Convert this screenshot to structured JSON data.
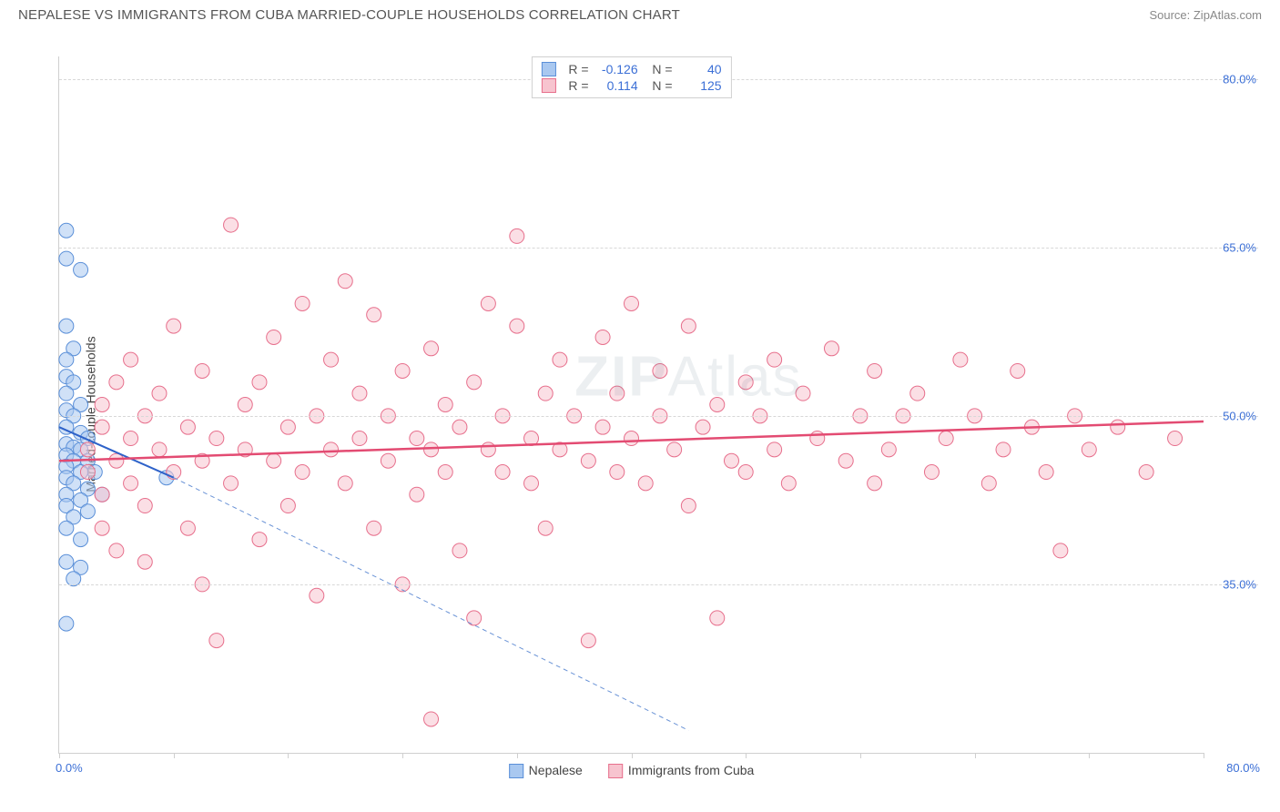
{
  "header": {
    "title": "NEPALESE VS IMMIGRANTS FROM CUBA MARRIED-COUPLE HOUSEHOLDS CORRELATION CHART",
    "source": "Source: ZipAtlas.com"
  },
  "chart": {
    "type": "scatter",
    "ylabel": "Married-couple Households",
    "watermark": "ZIPAtlas",
    "background_color": "#ffffff",
    "grid_color": "#d8d8d8",
    "axis_color": "#cfcfcf",
    "tick_label_color": "#3b6fd6",
    "xlim": [
      0,
      80
    ],
    "ylim": [
      20,
      82
    ],
    "yticks": [
      {
        "v": 35.0,
        "label": "35.0%"
      },
      {
        "v": 50.0,
        "label": "50.0%"
      },
      {
        "v": 65.0,
        "label": "65.0%"
      },
      {
        "v": 80.0,
        "label": "80.0%"
      }
    ],
    "xticks_minor": [
      0,
      8,
      16,
      24,
      32,
      40,
      48,
      56,
      64,
      72,
      80
    ],
    "x_start_label": "0.0%",
    "x_end_label": "80.0%",
    "legend_stats": [
      {
        "swatch_fill": "#a9c8f0",
        "swatch_stroke": "#5a8fd8",
        "r": "-0.126",
        "n": "40"
      },
      {
        "swatch_fill": "#f7c4cf",
        "swatch_stroke": "#e76f8c",
        "r": "0.114",
        "n": "125"
      }
    ],
    "bottom_legend": [
      {
        "swatch_fill": "#a9c8f0",
        "swatch_stroke": "#5a8fd8",
        "label": "Nepalese"
      },
      {
        "swatch_fill": "#f7c4cf",
        "swatch_stroke": "#e76f8c",
        "label": "Immigrants from Cuba"
      }
    ],
    "marker_radius": 8,
    "marker_opacity": 0.55,
    "series": [
      {
        "name": "nepalese",
        "color_fill": "#a9c8f0",
        "color_stroke": "#5a8fd8",
        "trend": {
          "x1": 0,
          "y1": 49.0,
          "x2": 8,
          "y2": 44.5,
          "color": "#2e62c9",
          "width": 2,
          "dash": "none"
        },
        "trend_ext": {
          "x1": 8,
          "y1": 44.5,
          "x2": 44,
          "y2": 22.0,
          "color": "#6a93d6",
          "width": 1,
          "dash": "5,4"
        },
        "points": [
          [
            0.5,
            66.5
          ],
          [
            0.5,
            64.0
          ],
          [
            1.5,
            63.0
          ],
          [
            0.5,
            58.0
          ],
          [
            1.0,
            56.0
          ],
          [
            0.5,
            55.0
          ],
          [
            0.5,
            53.5
          ],
          [
            1.0,
            53.0
          ],
          [
            0.5,
            52.0
          ],
          [
            1.5,
            51.0
          ],
          [
            0.5,
            50.5
          ],
          [
            1.0,
            50.0
          ],
          [
            0.5,
            49.0
          ],
          [
            1.5,
            48.5
          ],
          [
            2.0,
            48.0
          ],
          [
            0.5,
            47.5
          ],
          [
            1.0,
            47.2
          ],
          [
            1.5,
            47.0
          ],
          [
            0.5,
            46.5
          ],
          [
            2.0,
            46.0
          ],
          [
            1.0,
            46.0
          ],
          [
            0.5,
            45.5
          ],
          [
            1.5,
            45.0
          ],
          [
            2.5,
            45.0
          ],
          [
            0.5,
            44.5
          ],
          [
            1.0,
            44.0
          ],
          [
            2.0,
            43.5
          ],
          [
            0.5,
            43.0
          ],
          [
            3.0,
            43.0
          ],
          [
            1.5,
            42.5
          ],
          [
            0.5,
            42.0
          ],
          [
            2.0,
            41.5
          ],
          [
            1.0,
            41.0
          ],
          [
            0.5,
            40.0
          ],
          [
            1.5,
            39.0
          ],
          [
            7.5,
            44.5
          ],
          [
            0.5,
            37.0
          ],
          [
            1.5,
            36.5
          ],
          [
            1.0,
            35.5
          ],
          [
            0.5,
            31.5
          ]
        ]
      },
      {
        "name": "cuba",
        "color_fill": "#f7c4cf",
        "color_stroke": "#e76f8c",
        "trend": {
          "x1": 0,
          "y1": 46.0,
          "x2": 80,
          "y2": 49.5,
          "color": "#e34b72",
          "width": 2.5,
          "dash": "none"
        },
        "points": [
          [
            2,
            47
          ],
          [
            2,
            45
          ],
          [
            3,
            49
          ],
          [
            3,
            43
          ],
          [
            3,
            51
          ],
          [
            3,
            40
          ],
          [
            4,
            46
          ],
          [
            4,
            53
          ],
          [
            4,
            38
          ],
          [
            5,
            48
          ],
          [
            5,
            44
          ],
          [
            5,
            55
          ],
          [
            6,
            50
          ],
          [
            6,
            42
          ],
          [
            6,
            37
          ],
          [
            7,
            47
          ],
          [
            7,
            52
          ],
          [
            8,
            45
          ],
          [
            8,
            58
          ],
          [
            9,
            49
          ],
          [
            9,
            40
          ],
          [
            10,
            46
          ],
          [
            10,
            54
          ],
          [
            10,
            35
          ],
          [
            11,
            48
          ],
          [
            11,
            30
          ],
          [
            12,
            67
          ],
          [
            12,
            44
          ],
          [
            13,
            51
          ],
          [
            13,
            47
          ],
          [
            14,
            53
          ],
          [
            14,
            39
          ],
          [
            15,
            46
          ],
          [
            15,
            57
          ],
          [
            16,
            49
          ],
          [
            16,
            42
          ],
          [
            17,
            60
          ],
          [
            17,
            45
          ],
          [
            18,
            50
          ],
          [
            18,
            34
          ],
          [
            19,
            55
          ],
          [
            19,
            47
          ],
          [
            20,
            62
          ],
          [
            20,
            44
          ],
          [
            21,
            48
          ],
          [
            21,
            52
          ],
          [
            22,
            59
          ],
          [
            22,
            40
          ],
          [
            23,
            46
          ],
          [
            23,
            50
          ],
          [
            24,
            54
          ],
          [
            24,
            35
          ],
          [
            25,
            48
          ],
          [
            25,
            43
          ],
          [
            26,
            47
          ],
          [
            26,
            56
          ],
          [
            27,
            51
          ],
          [
            27,
            45
          ],
          [
            28,
            38
          ],
          [
            28,
            49
          ],
          [
            29,
            53
          ],
          [
            29,
            32
          ],
          [
            30,
            47
          ],
          [
            30,
            60
          ],
          [
            31,
            45
          ],
          [
            31,
            50
          ],
          [
            32,
            58
          ],
          [
            32,
            66
          ],
          [
            33,
            48
          ],
          [
            33,
            44
          ],
          [
            34,
            52
          ],
          [
            34,
            40
          ],
          [
            35,
            47
          ],
          [
            35,
            55
          ],
          [
            36,
            50
          ],
          [
            37,
            46
          ],
          [
            37,
            30
          ],
          [
            38,
            49
          ],
          [
            38,
            57
          ],
          [
            39,
            45
          ],
          [
            39,
            52
          ],
          [
            40,
            48
          ],
          [
            40,
            60
          ],
          [
            41,
            44
          ],
          [
            42,
            50
          ],
          [
            42,
            54
          ],
          [
            43,
            47
          ],
          [
            44,
            58
          ],
          [
            44,
            42
          ],
          [
            45,
            49
          ],
          [
            46,
            51
          ],
          [
            46,
            32
          ],
          [
            47,
            46
          ],
          [
            48,
            53
          ],
          [
            48,
            45
          ],
          [
            49,
            50
          ],
          [
            50,
            55
          ],
          [
            50,
            47
          ],
          [
            51,
            44
          ],
          [
            52,
            52
          ],
          [
            53,
            48
          ],
          [
            54,
            56
          ],
          [
            55,
            46
          ],
          [
            56,
            50
          ],
          [
            57,
            54
          ],
          [
            57,
            44
          ],
          [
            58,
            47
          ],
          [
            59,
            50
          ],
          [
            60,
            52
          ],
          [
            61,
            45
          ],
          [
            62,
            48
          ],
          [
            63,
            55
          ],
          [
            64,
            50
          ],
          [
            65,
            44
          ],
          [
            66,
            47
          ],
          [
            67,
            54
          ],
          [
            68,
            49
          ],
          [
            69,
            45
          ],
          [
            70,
            38
          ],
          [
            71,
            50
          ],
          [
            72,
            47
          ],
          [
            74,
            49
          ],
          [
            76,
            45
          ],
          [
            78,
            48
          ],
          [
            26,
            23
          ]
        ]
      }
    ]
  }
}
